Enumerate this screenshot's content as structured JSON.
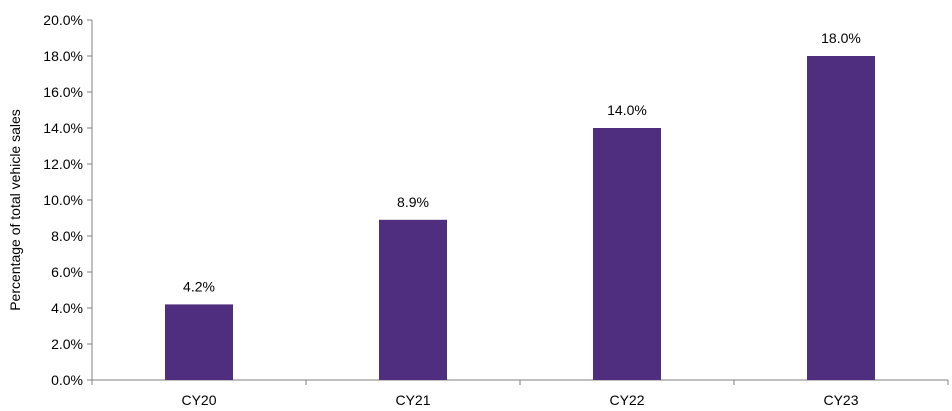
{
  "chart_data": {
    "type": "bar",
    "categories": [
      "CY20",
      "CY21",
      "CY22",
      "CY23"
    ],
    "values": [
      4.2,
      8.9,
      14.0,
      18.0
    ],
    "data_labels": [
      "4.2%",
      "8.9%",
      "14.0%",
      "18.0%"
    ],
    "title": "",
    "xlabel": "",
    "ylabel": "Percentage of total vehicle sales",
    "ylim": [
      0,
      20
    ],
    "ytick_step": 2,
    "ytick_labels": [
      "0.0%",
      "2.0%",
      "4.0%",
      "6.0%",
      "8.0%",
      "10.0%",
      "12.0%",
      "14.0%",
      "16.0%",
      "18.0%",
      "20.0%"
    ],
    "bar_color": "#4f2d7f",
    "grid": false,
    "legend": "none"
  }
}
